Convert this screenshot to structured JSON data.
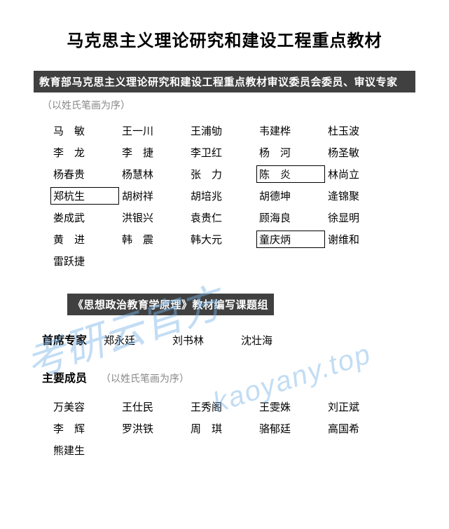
{
  "title": "马克思主义理论研究和建设工程重点教材",
  "section1": {
    "header": "教育部马克思主义理论研究和建设工程重点教材审议委员会委员、审议专家",
    "note": "（以姓氏笔画为序）",
    "rows": [
      [
        {
          "t": "马　敏"
        },
        {
          "t": "王一川"
        },
        {
          "t": "王浦劬"
        },
        {
          "t": "韦建桦"
        },
        {
          "t": "杜玉波"
        }
      ],
      [
        {
          "t": "李　龙"
        },
        {
          "t": "李　捷"
        },
        {
          "t": "李卫红"
        },
        {
          "t": "杨　河"
        },
        {
          "t": "杨圣敏"
        }
      ],
      [
        {
          "t": "杨春贵"
        },
        {
          "t": "杨慧林"
        },
        {
          "t": "张　力"
        },
        {
          "t": "陈　炎",
          "b": true
        },
        {
          "t": "林尚立"
        }
      ],
      [
        {
          "t": "郑杭生",
          "b": true
        },
        {
          "t": "胡树祥"
        },
        {
          "t": "胡培兆"
        },
        {
          "t": "胡德坤"
        },
        {
          "t": "逄锦聚"
        }
      ],
      [
        {
          "t": "娄成武"
        },
        {
          "t": "洪银兴"
        },
        {
          "t": "袁贵仁"
        },
        {
          "t": "顾海良"
        },
        {
          "t": "徐显明"
        }
      ],
      [
        {
          "t": "黄　进"
        },
        {
          "t": "韩　震"
        },
        {
          "t": "韩大元"
        },
        {
          "t": "童庆炳",
          "b": true
        },
        {
          "t": "谢维和"
        }
      ],
      [
        {
          "t": "雷跃捷"
        }
      ]
    ]
  },
  "section2": {
    "header": "《思想政治教育学原理》教材编写课题组",
    "chief_label": "首席专家",
    "chief_names": [
      "郑永廷",
      "刘书林",
      "沈壮海"
    ],
    "member_label": "主要成员",
    "member_note": "（以姓氏笔画为序）",
    "rows": [
      [
        {
          "t": "万美容"
        },
        {
          "t": "王仕民"
        },
        {
          "t": "王秀阁"
        },
        {
          "t": "王雯姝"
        },
        {
          "t": "刘正斌"
        }
      ],
      [
        {
          "t": "李　辉"
        },
        {
          "t": "罗洪铁"
        },
        {
          "t": "周　琪"
        },
        {
          "t": "骆郁廷"
        },
        {
          "t": "高国希"
        }
      ],
      [
        {
          "t": "熊建生"
        }
      ]
    ]
  },
  "watermark1": "考研云官方",
  "watermark2": "kaoyany.top",
  "colors": {
    "header_bg": "#404040",
    "header_fg": "#ffffff",
    "note_fg": "#888888",
    "text_fg": "#000000",
    "watermark_fg": "rgba(120,180,230,0.45)"
  }
}
